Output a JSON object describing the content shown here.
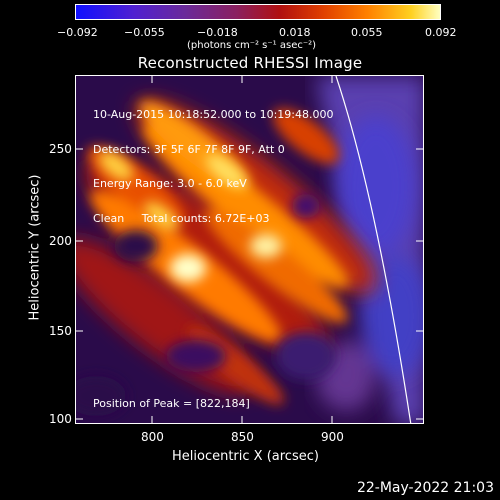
{
  "colorbar": {
    "ticks": [
      "−0.092",
      "−0.055",
      "−0.018",
      "0.018",
      "0.055",
      "0.092"
    ],
    "unit_label": "(photons cm⁻² s⁻¹ asec⁻²)"
  },
  "title": "Reconstructed RHESSI Image",
  "info": {
    "line1": "10-Aug-2015 10:18:52.000 to 10:19:48.000",
    "line2": "Detectors: 3F 5F 6F 7F 8F 9F, Att 0",
    "line3": "Energy Range: 3.0 - 6.0 keV",
    "line4": "Clean     Total counts: 6.72E+03",
    "peak": "Position of Peak = [822,184]"
  },
  "axes": {
    "xlabel": "Heliocentric X (arcsec)",
    "ylabel": "Heliocentric Y (arcsec)",
    "xticks": [
      "800",
      "850",
      "900"
    ],
    "yticks": [
      "100",
      "150",
      "200",
      "250"
    ],
    "xlim": [
      759,
      946
    ],
    "ylim": [
      99,
      286
    ]
  },
  "footer_date": "22-May-2022 21:03",
  "colors": {
    "background": "#000000",
    "text": "#ffffff",
    "limb": "#ffffff"
  }
}
